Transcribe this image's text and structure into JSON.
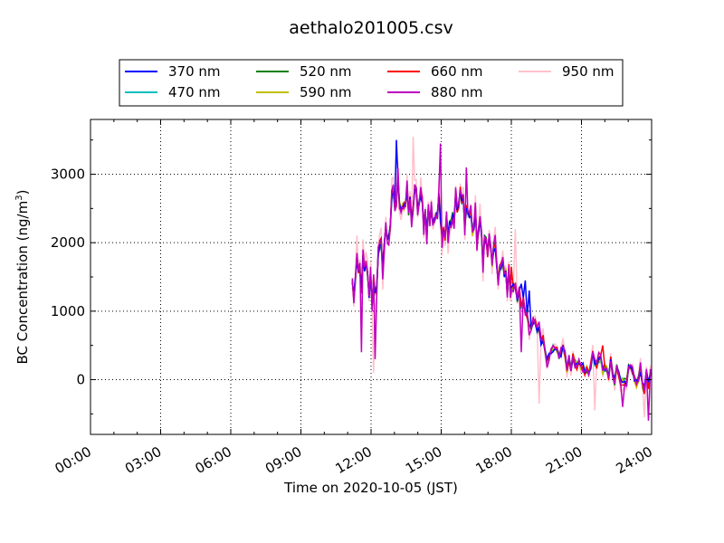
{
  "chart_data": {
    "type": "line",
    "title": "aethalo201005.csv",
    "xlabel": "Time on 2020-10-05 (JST)",
    "ylabel": "BC Concentration (ng/m",
    "ylabel_sup": "3",
    "ylabel_end": ")",
    "xlim": [
      0,
      24
    ],
    "ylim": [
      -800,
      3800
    ],
    "x_ticks": [
      0,
      3,
      6,
      9,
      12,
      15,
      18,
      21,
      24
    ],
    "x_tick_labels": [
      "00:00",
      "03:00",
      "06:00",
      "09:00",
      "12:00",
      "15:00",
      "18:00",
      "21:00",
      "24:00"
    ],
    "y_ticks": [
      0,
      1000,
      2000,
      3000
    ],
    "y_tick_labels": [
      "0",
      "1000",
      "2000",
      "3000"
    ],
    "grid": true,
    "legend_placement": "top, above plot",
    "legend_columns": 4,
    "series": [
      {
        "name": "370 nm",
        "color": "#0000ff"
      },
      {
        "name": "470 nm",
        "color": "#00bfbf"
      },
      {
        "name": "520 nm",
        "color": "#008000"
      },
      {
        "name": "590 nm",
        "color": "#bfbf00"
      },
      {
        "name": "660 nm",
        "color": "#ff0000"
      },
      {
        "name": "880 nm",
        "color": "#bf00bf"
      },
      {
        "name": "950 nm",
        "color": "#ffc0cb"
      }
    ],
    "trend": [
      [
        11.2,
        1300
      ],
      [
        11.6,
        1550
      ],
      [
        12.0,
        1300
      ],
      [
        12.4,
        1700
      ],
      [
        12.8,
        2300
      ],
      [
        13.2,
        2800
      ],
      [
        13.6,
        2450
      ],
      [
        14.0,
        2600
      ],
      [
        14.4,
        2350
      ],
      [
        14.8,
        2450
      ],
      [
        15.2,
        2300
      ],
      [
        15.6,
        2500
      ],
      [
        16.0,
        2550
      ],
      [
        16.4,
        2250
      ],
      [
        16.8,
        2000
      ],
      [
        17.2,
        1800
      ],
      [
        17.6,
        1550
      ],
      [
        18.0,
        1400
      ],
      [
        18.5,
        1100
      ],
      [
        18.9,
        800
      ],
      [
        19.3,
        500
      ],
      [
        19.8,
        400
      ],
      [
        20.3,
        300
      ],
      [
        20.8,
        250
      ],
      [
        21.3,
        200
      ],
      [
        21.8,
        200
      ],
      [
        22.3,
        150
      ],
      [
        22.8,
        100
      ],
      [
        23.3,
        50
      ],
      [
        24.0,
        -50
      ]
    ],
    "noise_amplitude": [
      [
        11.2,
        600
      ],
      [
        12.5,
        650
      ],
      [
        13.5,
        550
      ],
      [
        15.0,
        500
      ],
      [
        16.5,
        550
      ],
      [
        17.5,
        450
      ],
      [
        18.5,
        250
      ],
      [
        20.0,
        300
      ],
      [
        22.0,
        280
      ],
      [
        24.0,
        300
      ]
    ],
    "highlights": {
      "370 nm": [
        [
          13.1,
          3500
        ],
        [
          18.1,
          1400
        ],
        [
          18.4,
          1400
        ],
        [
          18.6,
          1450
        ],
        [
          18.8,
          1300
        ]
      ],
      "880 nm": [
        [
          11.6,
          400
        ],
        [
          12.2,
          300
        ],
        [
          15.0,
          3450
        ],
        [
          16.1,
          3100
        ],
        [
          18.4,
          400
        ],
        [
          22.8,
          -400
        ],
        [
          23.9,
          -600
        ]
      ],
      "950 nm": [
        [
          13.8,
          3550
        ],
        [
          12.1,
          100
        ],
        [
          18.2,
          2200
        ],
        [
          19.2,
          -350
        ],
        [
          21.6,
          -450
        ],
        [
          23.7,
          -550
        ]
      ],
      "660 nm": [
        [
          18.0,
          1650
        ],
        [
          21.9,
          500
        ]
      ]
    }
  }
}
